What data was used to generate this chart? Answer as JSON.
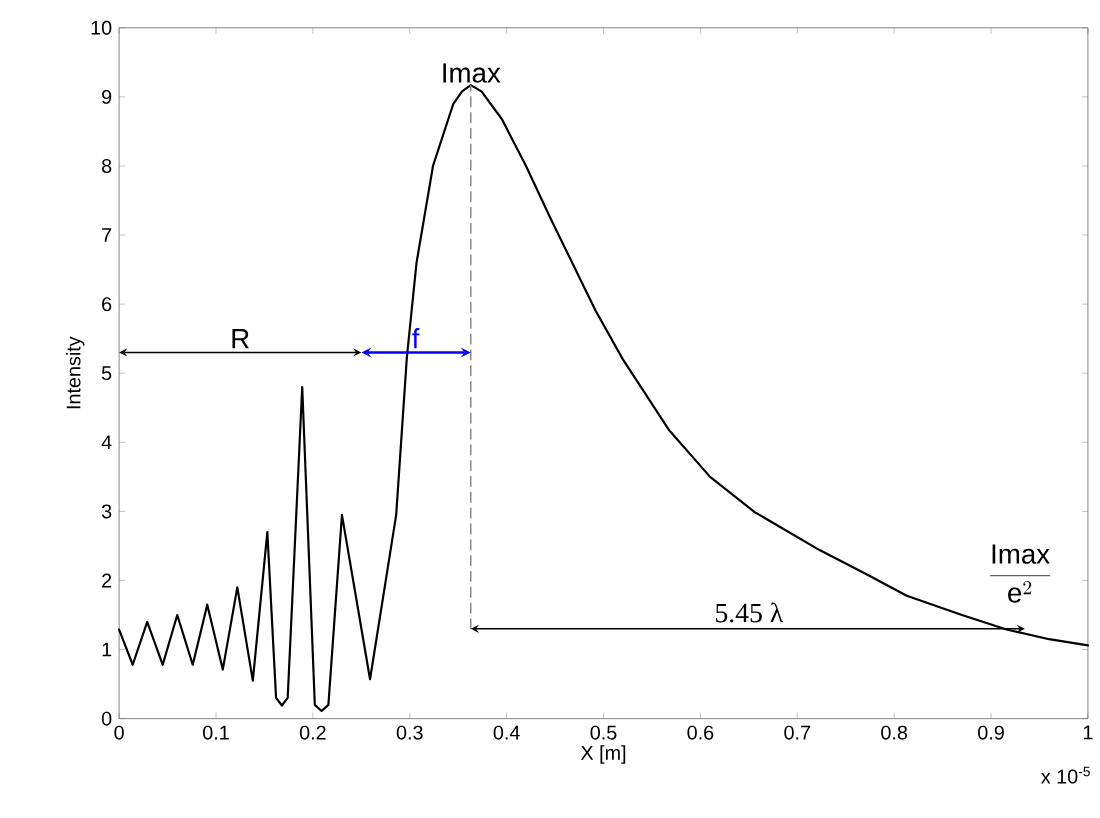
{
  "chart_data": {
    "type": "line",
    "xlabel": "X [m]",
    "ylabel": "Intensity",
    "xlim": [
      0,
      1
    ],
    "ylim": [
      0,
      10
    ],
    "xticks": [
      0,
      0.1,
      0.2,
      0.3,
      0.4,
      0.5,
      0.6,
      0.7,
      0.8,
      0.9,
      1
    ],
    "yticks": [
      0,
      1,
      2,
      3,
      4,
      5,
      6,
      7,
      8,
      9,
      10
    ],
    "grid": false,
    "marker": "none",
    "series": [
      {
        "color": "#000000",
        "line_style": "solid",
        "x": [
          0,
          0.014,
          0.029,
          0.045,
          0.06,
          0.076,
          0.091,
          0.107,
          0.122,
          0.138,
          0.153,
          0.162,
          0.168,
          0.174,
          0.189,
          0.202,
          0.209,
          0.216,
          0.23,
          0.259,
          0.286,
          0.297,
          0.307,
          0.324,
          0.345,
          0.354,
          0.363,
          0.374,
          0.395,
          0.42,
          0.445,
          0.492,
          0.52,
          0.568,
          0.61,
          0.656,
          0.723,
          0.77,
          0.813,
          0.87,
          0.916,
          0.96,
          1.0
        ],
        "values": [
          1.29,
          0.78,
          1.4,
          0.78,
          1.5,
          0.78,
          1.65,
          0.71,
          1.9,
          0.55,
          2.7,
          0.3,
          0.19,
          0.3,
          4.8,
          0.2,
          0.11,
          0.2,
          2.95,
          0.57,
          2.95,
          5.23,
          6.6,
          8.0,
          8.9,
          9.08,
          9.17,
          9.08,
          8.68,
          8.0,
          7.25,
          5.9,
          5.2,
          4.17,
          3.5,
          2.99,
          2.44,
          2.1,
          1.78,
          1.5,
          1.29,
          1.15,
          1.06
        ]
      },
      {
        "color": "#808080",
        "line_style": "dashed",
        "x": [
          0.363,
          0.363
        ],
        "values": [
          1.3,
          9.17
        ]
      }
    ],
    "annotations": [
      {
        "text": "Imax",
        "x": 0.363,
        "y": 9.17
      },
      "R",
      "f",
      "5.45 λ",
      "\\frac{\\mathrm{Imax}}{\\mathrm{e}^{2}}",
      "x 10$^{-5}$"
    ]
  }
}
